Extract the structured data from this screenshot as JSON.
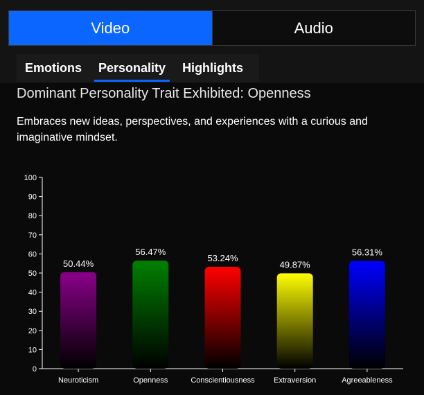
{
  "top_tabs": [
    {
      "label": "Video",
      "active": true
    },
    {
      "label": "Audio",
      "active": false
    }
  ],
  "sub_tabs": [
    {
      "label": "Emotions",
      "active": false
    },
    {
      "label": "Personality",
      "active": true
    },
    {
      "label": "Highlights",
      "active": false
    }
  ],
  "trait": {
    "title": "Dominant Personality Trait Exhibited: Openness",
    "description": "Embraces new ideas, perspectives, and experiences with a curious and imaginative mindset."
  },
  "colors": {
    "accent": "#0a66ff"
  },
  "chart_data": {
    "type": "bar",
    "categories": [
      "Neuroticism",
      "Openness",
      "Conscientiousness",
      "Extraversion",
      "Agreeableness"
    ],
    "values": [
      50.44,
      56.47,
      53.24,
      49.87,
      56.31
    ],
    "value_labels": [
      "50.44%",
      "56.47%",
      "53.24%",
      "49.87%",
      "56.31%"
    ],
    "colors": [
      "#8a008a",
      "#008000",
      "#ff0000",
      "#ffff00",
      "#0000ff"
    ],
    "title": "",
    "xlabel": "",
    "ylabel": "",
    "ylim": [
      0,
      100
    ],
    "yticks": [
      0,
      10,
      20,
      30,
      40,
      50,
      60,
      70,
      80,
      90,
      100
    ],
    "grid": false
  }
}
